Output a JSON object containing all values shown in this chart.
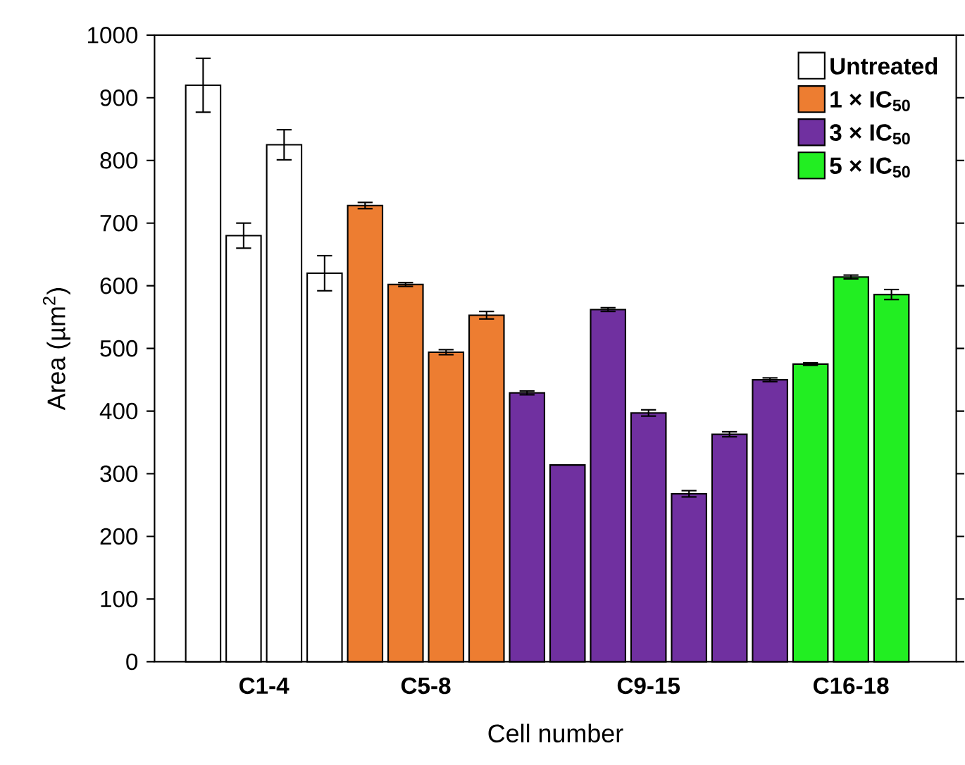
{
  "chart_data": {
    "type": "bar",
    "xlabel": "Cell number",
    "ylabel": "Area (µm$^{2}$)",
    "categories": [
      null,
      null,
      null,
      null,
      null,
      null,
      null,
      null,
      null,
      null,
      null,
      null,
      null,
      null,
      null,
      null,
      null,
      null
    ],
    "stacked": true,
    "series": [
      {
        "name": "Untreated",
        "color": "#ffffff",
        "values": [
          920,
          680,
          825,
          620,
          null,
          null,
          null,
          null,
          null,
          null,
          null,
          null,
          null,
          null,
          null,
          null,
          null,
          null
        ],
        "errors": [
          43,
          20,
          24,
          28,
          null,
          null,
          null,
          null,
          null,
          null,
          null,
          null,
          null,
          null,
          null,
          null,
          null,
          null
        ]
      },
      {
        "name": "1 × IC$_{50}$",
        "color": "#ed7d31",
        "values": [
          null,
          null,
          null,
          null,
          728,
          602,
          494,
          553,
          null,
          null,
          null,
          null,
          null,
          null,
          null,
          null,
          null,
          null
        ],
        "errors": [
          null,
          null,
          null,
          null,
          5,
          3,
          4,
          6,
          null,
          null,
          null,
          null,
          null,
          null,
          null,
          null,
          null,
          null
        ]
      },
      {
        "name": "3 × IC$_{50}$",
        "color": "#7030a0",
        "values": [
          null,
          null,
          null,
          null,
          null,
          null,
          null,
          null,
          429,
          314,
          562,
          397,
          268,
          363,
          450,
          null,
          null,
          null
        ],
        "errors": [
          null,
          null,
          null,
          null,
          null,
          null,
          null,
          null,
          3,
          null,
          3,
          5,
          5,
          4,
          3,
          null,
          null,
          null
        ]
      },
      {
        "name": "5 × IC$_{50}$",
        "color": "#22ee22",
        "values": [
          null,
          null,
          null,
          null,
          null,
          null,
          null,
          null,
          null,
          null,
          null,
          null,
          null,
          null,
          null,
          475,
          614,
          586
        ],
        "errors": [
          null,
          null,
          null,
          null,
          null,
          null,
          null,
          null,
          null,
          null,
          null,
          null,
          null,
          null,
          null,
          2,
          3,
          8
        ]
      }
    ],
    "annotations": [
      "C1-4",
      "C5-8",
      "C9-15",
      "C16-18"
    ],
    "ylim": [
      0,
      1000
    ],
    "yticks": [
      0,
      100,
      200,
      300,
      400,
      500,
      600,
      700,
      800,
      900,
      1000
    ],
    "legend": "top right",
    "tick_labels": "y"
  }
}
